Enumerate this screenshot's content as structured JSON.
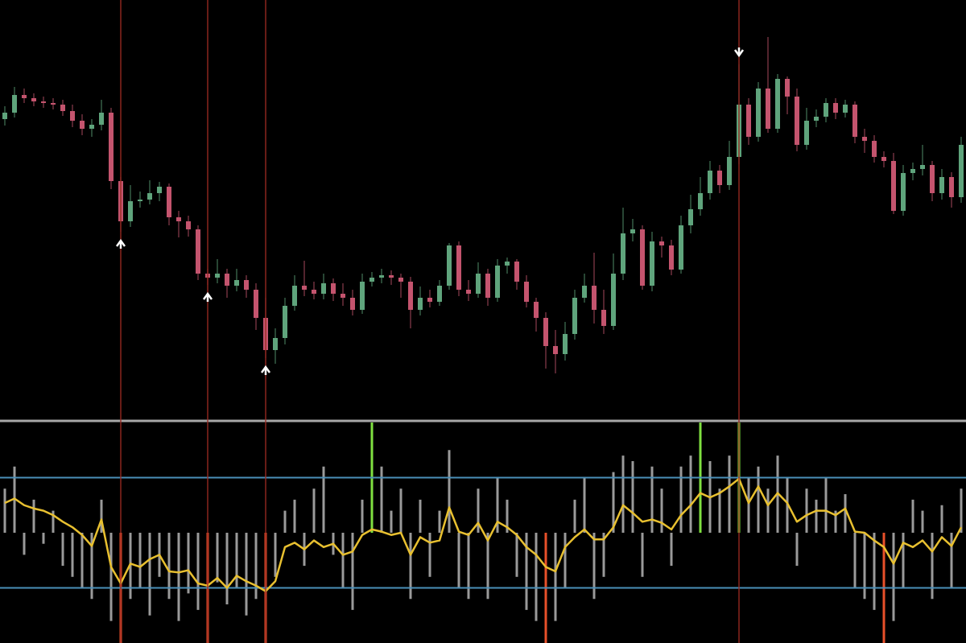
{
  "chart_data": [
    {
      "type": "candlestick",
      "ylim": [
        0,
        520
      ],
      "up_color": "#5fa47c",
      "down_color": "#c4546e",
      "signal_color": "#9b2a22",
      "arrow_color": "#ffffff",
      "open": [
        372,
        380,
        402,
        398,
        394,
        392,
        390,
        382,
        370,
        360,
        365,
        380,
        295,
        245,
        270,
        272,
        280,
        288,
        250,
        245,
        235,
        180,
        175,
        180,
        165,
        172,
        160,
        125,
        85,
        100,
        140,
        165,
        160,
        155,
        168,
        155,
        150,
        135,
        170,
        175,
        178,
        175,
        170,
        135,
        150,
        145,
        165,
        215,
        160,
        155,
        180,
        150,
        190,
        195,
        170,
        145,
        125,
        90,
        80,
        105,
        150,
        165,
        135,
        115,
        180,
        230,
        235,
        165,
        220,
        215,
        185,
        240,
        260,
        280,
        308,
        290,
        325,
        390,
        350,
        410,
        360,
        422,
        400,
        340,
        370,
        375,
        392,
        380,
        390,
        350,
        345,
        325,
        320,
        258,
        305,
        310,
        315,
        280,
        300,
        275
      ],
      "high": [
        388,
        412,
        410,
        404,
        400,
        398,
        396,
        390,
        378,
        372,
        396,
        386,
        300,
        290,
        282,
        296,
        294,
        292,
        258,
        252,
        240,
        186,
        198,
        186,
        186,
        178,
        168,
        150,
        112,
        150,
        178,
        196,
        170,
        180,
        174,
        168,
        160,
        180,
        182,
        186,
        184,
        180,
        176,
        164,
        160,
        172,
        218,
        220,
        172,
        194,
        186,
        198,
        200,
        198,
        178,
        150,
        132,
        110,
        120,
        160,
        180,
        206,
        160,
        205,
        262,
        248,
        240,
        232,
        226,
        222,
        252,
        278,
        300,
        320,
        315,
        345,
        440,
        398,
        418,
        474,
        428,
        425,
        410,
        386,
        384,
        398,
        398,
        396,
        394,
        360,
        352,
        332,
        330,
        315,
        318,
        340,
        320,
        310,
        306,
        350
      ],
      "low": [
        364,
        374,
        392,
        388,
        386,
        384,
        376,
        362,
        352,
        350,
        358,
        285,
        232,
        238,
        262,
        266,
        270,
        240,
        225,
        226,
        172,
        166,
        168,
        150,
        158,
        150,
        110,
        75,
        68,
        92,
        134,
        152,
        148,
        148,
        146,
        140,
        128,
        130,
        164,
        168,
        166,
        150,
        112,
        128,
        138,
        140,
        160,
        152,
        146,
        150,
        140,
        145,
        180,
        160,
        138,
        108,
        62,
        56,
        72,
        98,
        144,
        118,
        105,
        110,
        172,
        220,
        160,
        158,
        200,
        178,
        180,
        230,
        252,
        272,
        280,
        284,
        316,
        340,
        344,
        355,
        355,
        378,
        332,
        334,
        362,
        368,
        372,
        374,
        342,
        330,
        318,
        312,
        254,
        252,
        296,
        302,
        270,
        272,
        262,
        268
      ],
      "close": [
        380,
        402,
        398,
        394,
        392,
        390,
        382,
        370,
        360,
        365,
        380,
        295,
        245,
        270,
        272,
        280,
        288,
        250,
        245,
        235,
        180,
        175,
        180,
        165,
        172,
        160,
        125,
        85,
        100,
        140,
        165,
        160,
        155,
        168,
        155,
        150,
        135,
        170,
        175,
        178,
        175,
        170,
        135,
        150,
        145,
        165,
        215,
        160,
        155,
        180,
        150,
        190,
        195,
        170,
        145,
        125,
        90,
        80,
        105,
        150,
        165,
        135,
        115,
        180,
        230,
        235,
        165,
        220,
        215,
        185,
        240,
        260,
        280,
        308,
        290,
        325,
        390,
        350,
        410,
        360,
        422,
        400,
        340,
        370,
        375,
        392,
        380,
        390,
        350,
        345,
        325,
        320,
        258,
        305,
        310,
        315,
        280,
        300,
        275,
        340
      ],
      "buy_signals": [
        12,
        21,
        27
      ],
      "sell_signals": [
        76
      ]
    },
    {
      "type": "line",
      "ylim": [
        -100,
        100
      ],
      "levels": [
        50,
        -50
      ],
      "level_color": "#4a8fb8",
      "series": [
        {
          "color": "#e8c030",
          "values": [
            27,
            31,
            25,
            22,
            20,
            16,
            10,
            5,
            -2,
            -12,
            12,
            -31,
            -46,
            -28,
            -31,
            -24,
            -20,
            -35,
            -36,
            -34,
            -46,
            -48,
            -41,
            -50,
            -39,
            -44,
            -48,
            -53,
            -44,
            -13,
            -9,
            -15,
            -7,
            -13,
            -10,
            -20,
            -17,
            -2,
            3,
            1,
            -2,
            0,
            -20,
            -4,
            -9,
            -7,
            23,
            1,
            -2,
            9,
            -7,
            10,
            5,
            -2,
            -13,
            -20,
            -31,
            -35,
            -13,
            -4,
            3,
            -6,
            -6,
            5,
            25,
            18,
            10,
            12,
            9,
            3,
            16,
            25,
            36,
            32,
            36,
            42,
            49,
            27,
            42,
            25,
            36,
            27,
            10,
            16,
            20,
            20,
            16,
            22,
            1,
            0,
            -7,
            -13,
            -28,
            -9,
            -13,
            -7,
            -17,
            -4,
            -12,
            5
          ]
        }
      ],
      "histogram": {
        "color": "#9a9a9a",
        "values": [
          40,
          60,
          -20,
          30,
          -10,
          20,
          -30,
          -40,
          -50,
          -60,
          30,
          -80,
          -70,
          -60,
          -50,
          -75,
          -40,
          -60,
          -80,
          -55,
          -70,
          -80,
          -45,
          -65,
          -50,
          -75,
          -60,
          -80,
          -40,
          20,
          30,
          -30,
          40,
          60,
          -20,
          -50,
          -70,
          30,
          50,
          60,
          20,
          40,
          -60,
          30,
          -40,
          20,
          75,
          -50,
          -60,
          40,
          -60,
          50,
          30,
          -40,
          -70,
          -80,
          -75,
          -80,
          -50,
          30,
          50,
          -60,
          -40,
          55,
          70,
          65,
          -40,
          60,
          40,
          -30,
          60,
          70,
          75,
          65,
          40,
          70,
          75,
          50,
          60,
          40,
          70,
          50,
          -30,
          40,
          30,
          50,
          20,
          35,
          -50,
          -60,
          -70,
          -75,
          -80,
          -50,
          30,
          20,
          -60,
          25,
          -50,
          40
        ]
      },
      "high_extremes": [
        38,
        72,
        76
      ],
      "high_extreme_color": "#7fe040",
      "low_extremes": [
        12,
        21,
        27,
        56,
        91
      ],
      "low_extreme_color": "#e8502a"
    }
  ]
}
